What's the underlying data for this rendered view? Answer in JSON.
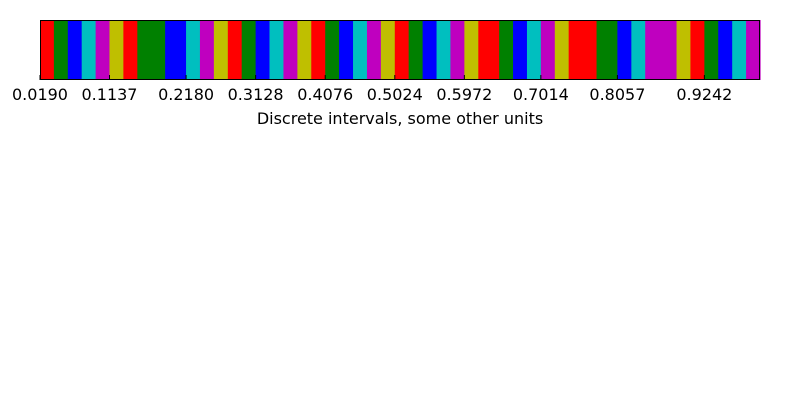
{
  "chart_data": {
    "type": "colorbar",
    "orientation": "horizontal",
    "xlabel": "Discrete intervals, some other units",
    "xlim": [
      0.019,
      1.0
    ],
    "tick_values": [
      0.019,
      0.1137,
      0.218,
      0.3128,
      0.4076,
      0.5024,
      0.5972,
      0.7014,
      0.8057,
      0.9242
    ],
    "tick_labels": [
      "0.0190",
      "0.1137",
      "0.2180",
      "0.3128",
      "0.4076",
      "0.5024",
      "0.5972",
      "0.7014",
      "0.8057",
      "0.9242"
    ],
    "palette": {
      "r": "#ff0000",
      "g": "#008000",
      "b": "#0000ff",
      "c": "#00bfbf",
      "m": "#bf00bf",
      "y": "#bfbf00"
    },
    "boundaries": [
      0.019,
      0.0379,
      0.0569,
      0.0758,
      0.0948,
      0.1137,
      0.1326,
      0.1516,
      0.1895,
      0.218,
      0.2369,
      0.2559,
      0.2749,
      0.2938,
      0.3128,
      0.3317,
      0.3507,
      0.3697,
      0.3886,
      0.4076,
      0.4265,
      0.4455,
      0.4645,
      0.4834,
      0.5024,
      0.5213,
      0.5403,
      0.5593,
      0.5782,
      0.5972,
      0.6162,
      0.6446,
      0.6635,
      0.6825,
      0.7014,
      0.7204,
      0.7393,
      0.7773,
      0.8057,
      0.8247,
      0.8436,
      0.8863,
      0.9052,
      0.9242,
      0.9431,
      0.9621,
      0.981,
      1.0
    ],
    "interval_colors": [
      "r",
      "g",
      "b",
      "c",
      "m",
      "y",
      "r",
      "g",
      "b",
      "c",
      "m",
      "y",
      "r",
      "g",
      "b",
      "c",
      "m",
      "y",
      "r",
      "g",
      "b",
      "c",
      "m",
      "y",
      "r",
      "g",
      "b",
      "c",
      "m",
      "y",
      "r",
      "g",
      "b",
      "c",
      "m",
      "y",
      "r",
      "g",
      "b",
      "c",
      "m",
      "y",
      "r",
      "g",
      "b",
      "c",
      "m"
    ]
  }
}
